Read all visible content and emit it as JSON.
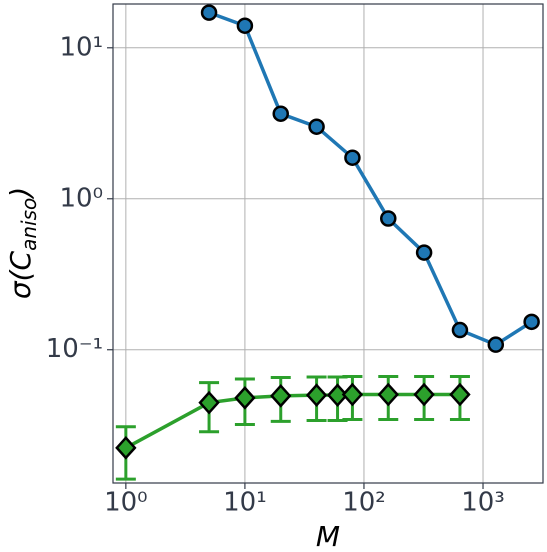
{
  "chart_data": {
    "type": "line",
    "xlabel": "M",
    "ylabel": {
      "main": "σ(C",
      "sub": "aniso",
      "close": ")"
    },
    "xscale": "log",
    "yscale": "log",
    "grid": true,
    "xlim": [
      0.78,
      3190
    ],
    "ylim": [
      0.0131,
      19.5
    ],
    "xticks": [
      {
        "value": 1,
        "label": "10⁰"
      },
      {
        "value": 10,
        "label": "10¹"
      },
      {
        "value": 100,
        "label": "10²"
      },
      {
        "value": 1000,
        "label": "10³"
      }
    ],
    "yticks": [
      {
        "value": 0.1,
        "label": "10⁻¹"
      },
      {
        "value": 1,
        "label": "10⁰"
      },
      {
        "value": 10,
        "label": "10¹"
      }
    ],
    "series": [
      {
        "color": "#1f77b4",
        "marker": "circle",
        "x": [
          5,
          10,
          20,
          40,
          80,
          160,
          320,
          640,
          1280,
          2560
        ],
        "values": [
          17.1,
          14.0,
          3.66,
          3.0,
          1.87,
          0.74,
          0.44,
          0.135,
          0.108,
          0.153
        ]
      },
      {
        "color": "#2ca02c",
        "marker": "diamond",
        "x": [
          1,
          5,
          10,
          20,
          40,
          60,
          80,
          160,
          320,
          640
        ],
        "values": [
          0.0224,
          0.0446,
          0.048,
          0.0495,
          0.05,
          0.05,
          0.0505,
          0.0505,
          0.0505,
          0.0505
        ],
        "errors": [
          0.0085,
          0.016,
          0.016,
          0.016,
          0.016,
          0.016,
          0.016,
          0.016,
          0.016,
          0.016
        ]
      }
    ]
  }
}
